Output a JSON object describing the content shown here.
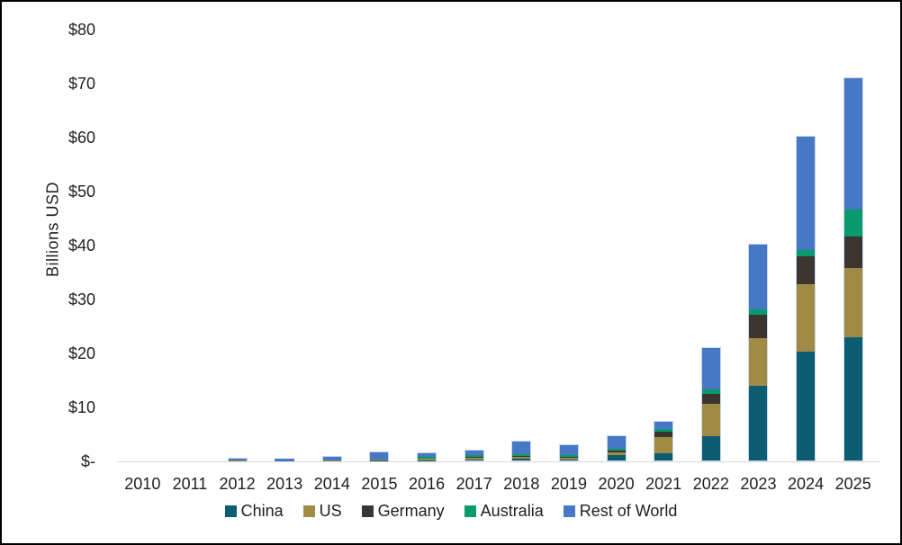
{
  "figure": {
    "background": "#ffffff",
    "border_color": "#000000",
    "axis_line_color": "#d9d9d9",
    "text_color": "#1f1f1f"
  },
  "chart_data": {
    "type": "bar",
    "stacked": true,
    "title": "",
    "xlabel": "",
    "ylabel": "Billions USD",
    "ylim": [
      0,
      80
    ],
    "y_tick_labels": [
      "$-",
      "$10",
      "$20",
      "$30",
      "$40",
      "$50",
      "$60",
      "$70",
      "$80"
    ],
    "grid": false,
    "legend_position": "bottom",
    "categories": [
      "2010",
      "2011",
      "2012",
      "2013",
      "2014",
      "2015",
      "2016",
      "2017",
      "2018",
      "2019",
      "2020",
      "2021",
      "2022",
      "2023",
      "2024",
      "2025"
    ],
    "series": [
      {
        "name": "China",
        "color": "#0c5c74",
        "values": [
          0,
          0,
          0.02,
          0.02,
          0.02,
          0.05,
          0.05,
          0.1,
          0.3,
          0.25,
          1.1,
          1.4,
          4.5,
          13.9,
          20.3,
          23.0
        ]
      },
      {
        "name": "US",
        "color": "#a18b44",
        "values": [
          0,
          0,
          0.05,
          0.03,
          0.05,
          0.15,
          0.35,
          0.4,
          0.35,
          0.25,
          0.55,
          3.15,
          6.25,
          9.0,
          12.6,
          12.8
        ]
      },
      {
        "name": "Germany",
        "color": "#3a362f",
        "values": [
          0,
          0,
          0.02,
          0.01,
          0.02,
          0.05,
          0.05,
          0.25,
          0.2,
          0.2,
          0.35,
          1.0,
          1.8,
          4.3,
          5.15,
          5.9
        ]
      },
      {
        "name": "Australia",
        "color": "#089a6c",
        "values": [
          0,
          0,
          0.01,
          0.01,
          0.01,
          0.05,
          0.35,
          0.4,
          0.35,
          0.35,
          0.3,
          0.55,
          0.8,
          1.1,
          1.25,
          5.1
        ]
      },
      {
        "name": "Rest of World",
        "color": "#4678c5",
        "values": [
          0,
          0.05,
          0.5,
          0.35,
          0.85,
          1.6,
          0.8,
          1.05,
          2.6,
          2.15,
          2.5,
          1.4,
          7.8,
          12.0,
          21.0,
          24.3
        ]
      }
    ]
  }
}
